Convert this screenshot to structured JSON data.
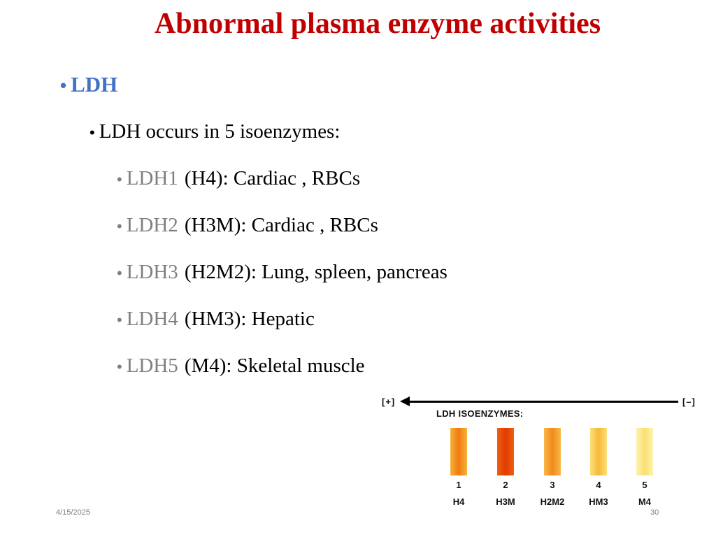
{
  "slide": {
    "title": "Abnormal plasma enzyme activities",
    "bullet_symbol": "•",
    "level1": {
      "text": "LDH"
    },
    "level2": {
      "text": "LDH occurs in 5 isoenzymes:"
    },
    "isoenzymes": [
      {
        "name": "LDH1",
        "desc": "(H4): Cardiac , RBCs"
      },
      {
        "name": "LDH2",
        "desc": "(H3M): Cardiac , RBCs"
      },
      {
        "name": "LDH3",
        "desc": "(H2M2): Lung, spleen, pancreas"
      },
      {
        "name": "LDH4",
        "desc": "(HM3): Hepatic"
      },
      {
        "name": "LDH5",
        "desc": "(M4): Skeletal muscle"
      }
    ]
  },
  "figure": {
    "plus_label": "[+]",
    "minus_label": "[–]",
    "title": "LDH ISOENZYMES:",
    "bands": [
      {
        "number": "1",
        "label": "H4",
        "colors": [
          "#f7b23b",
          "#f07a10",
          "#f7b23b"
        ]
      },
      {
        "number": "2",
        "label": "H3M",
        "colors": [
          "#f06010",
          "#e03a00",
          "#f06010"
        ]
      },
      {
        "number": "3",
        "label": "H2M2",
        "colors": [
          "#f9b848",
          "#f28a1a",
          "#f9b848"
        ]
      },
      {
        "number": "4",
        "label": "HM3",
        "colors": [
          "#fbe07a",
          "#f7b83a",
          "#fbe07a"
        ]
      },
      {
        "number": "5",
        "label": "M4",
        "colors": [
          "#fdf3b0",
          "#f8e070",
          "#fdf3b0"
        ]
      }
    ]
  },
  "footer": {
    "date": "4/15/2025",
    "page_number": "30"
  }
}
